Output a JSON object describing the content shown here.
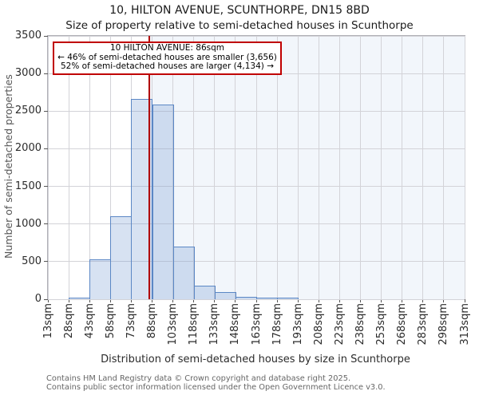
{
  "title": "10, HILTON AVENUE, SCUNTHORPE, DN15 8BD",
  "subtitle": "Size of property relative to semi-detached houses in Scunthorpe",
  "annotation": {
    "line1": "10 HILTON AVENUE: 86sqm",
    "line2": "← 46% of semi-detached houses are smaller (3,656)",
    "line3": "52% of semi-detached houses are larger (4,134) →"
  },
  "footer": {
    "line1": "Contains HM Land Registry data © Crown copyright and database right 2025.",
    "line2": "Contains public sector information licensed under the Open Government Licence v3.0."
  },
  "colors": {
    "bar_fill": "rgba(110,150,210,0.28)",
    "bar_border": "#5b87c5",
    "shade_fill": "rgba(110,150,210,0.09)",
    "marker_red": "#b00000",
    "annotation_border": "#c00000",
    "gridline": "#d3d3d8"
  },
  "chart_data": {
    "type": "bar",
    "title": "10, HILTON AVENUE, SCUNTHORPE, DN15 8BD — Size of property relative to semi-detached houses in Scunthorpe",
    "xlabel": "Distribution of semi-detached houses by size in Scunthorpe",
    "ylabel": "Number of semi-detached properties",
    "x_tick_labels": [
      "13sqm",
      "28sqm",
      "43sqm",
      "58sqm",
      "73sqm",
      "88sqm",
      "103sqm",
      "118sqm",
      "133sqm",
      "148sqm",
      "163sqm",
      "178sqm",
      "193sqm",
      "208sqm",
      "223sqm",
      "238sqm",
      "253sqm",
      "268sqm",
      "283sqm",
      "298sqm",
      "313sqm"
    ],
    "bin_start_sqm": 13,
    "bin_size_sqm": 15,
    "values": [
      0,
      20,
      530,
      1100,
      2660,
      2590,
      700,
      185,
      100,
      30,
      20,
      20,
      0,
      0,
      0,
      0,
      0,
      0,
      0,
      0
    ],
    "y_ticks": [
      0,
      500,
      1000,
      1500,
      2000,
      2500,
      3000,
      3500
    ],
    "ylim": [
      0,
      3500
    ],
    "grid": true,
    "marker_value_sqm": 86,
    "shaded_region_from_sqm": 86,
    "shaded_region_to_sqm": 313,
    "smaller_count": 3656,
    "smaller_pct": 46,
    "larger_count": 4134,
    "larger_pct": 52
  }
}
